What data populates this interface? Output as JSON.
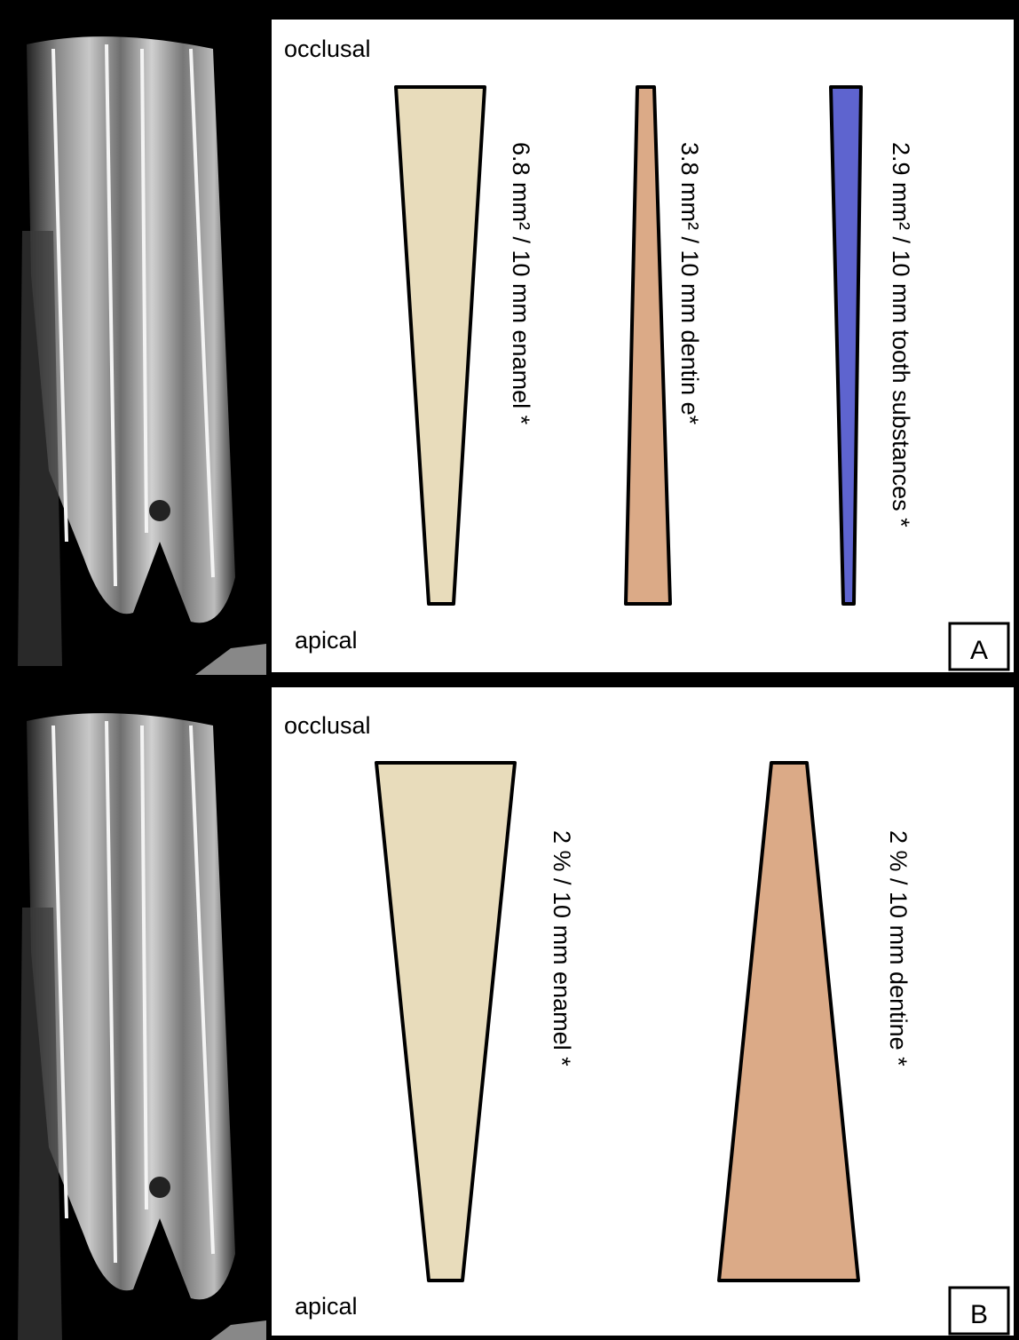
{
  "panels": [
    {
      "top_label": "occlusal",
      "bottom_label": "apical",
      "letter": "A",
      "shapes": [
        {
          "label": "6.8 mm² / 10 mm enamel *"
        },
        {
          "label": "3.8 mm² / 10 mm dentin e*"
        },
        {
          "label": "2.9 mm² / 10 mm tooth substances *"
        }
      ]
    },
    {
      "top_label": "occlusal",
      "bottom_label": "apical",
      "letter": "B",
      "shapes": [
        {
          "label": "2 % / 10 mm enamel *"
        },
        {
          "label": "2 % / 10 mm dentine *"
        }
      ]
    }
  ]
}
